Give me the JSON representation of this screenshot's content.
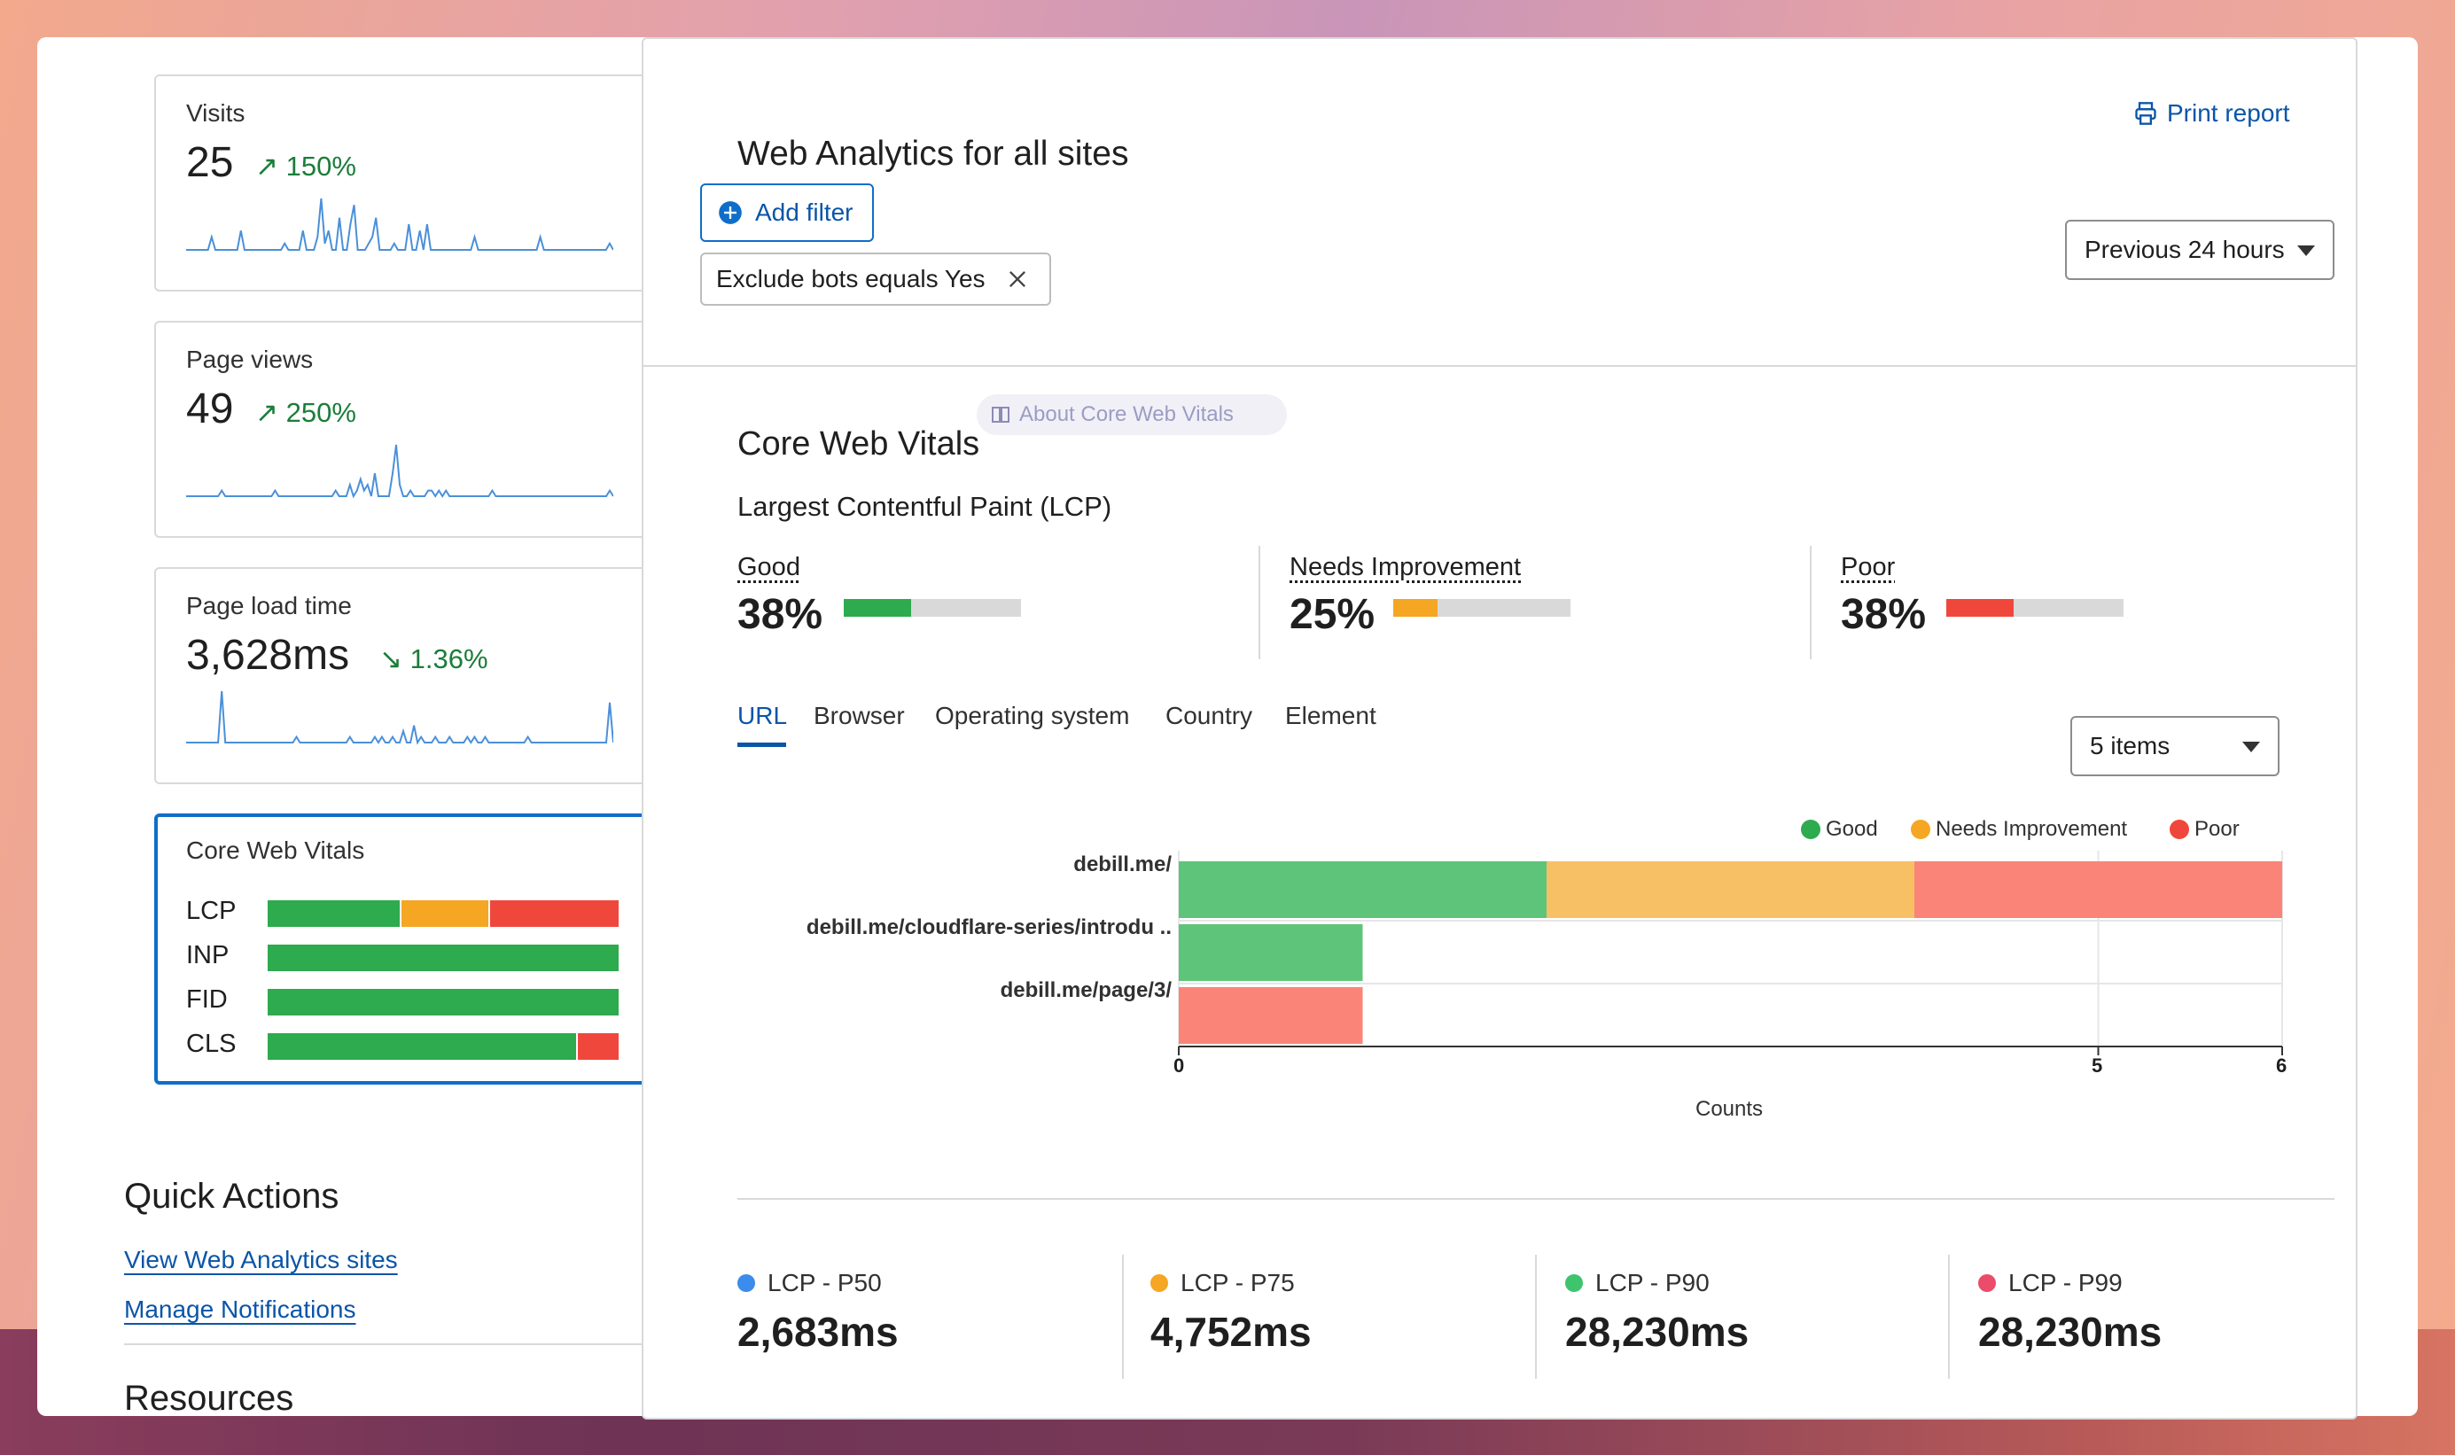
{
  "cards": {
    "visits": {
      "title": "Visits",
      "value": "25",
      "delta": "150%",
      "sparkline": [
        0,
        0,
        0,
        0,
        0,
        0,
        0,
        2,
        0,
        0,
        0,
        0,
        0,
        0,
        0,
        3,
        0,
        0,
        0,
        0,
        0,
        0,
        0,
        0,
        0,
        0,
        0,
        1,
        0,
        0,
        0,
        0,
        3,
        0,
        0,
        0,
        2,
        8,
        1,
        3,
        0,
        0,
        5,
        0,
        0,
        4,
        7,
        0,
        0,
        0,
        1,
        2,
        5,
        0,
        0,
        0,
        0,
        1,
        0,
        0,
        0,
        4,
        0,
        0,
        3,
        0,
        4,
        0,
        0,
        0,
        0,
        0,
        0,
        0,
        0,
        0,
        0,
        0,
        0,
        2,
        0,
        0,
        0,
        0,
        0,
        0,
        0,
        0,
        0,
        0,
        0,
        0,
        0,
        0,
        0,
        0,
        0,
        2,
        0,
        0,
        0,
        0,
        0,
        0,
        0,
        0,
        0,
        0,
        0,
        0,
        0,
        0,
        0,
        0,
        0,
        0,
        1,
        0
      ]
    },
    "pageviews": {
      "title": "Page views",
      "value": "49",
      "delta": "250%",
      "sparkline": [
        0,
        0,
        0,
        0,
        0,
        0,
        0,
        0,
        0,
        0,
        1,
        0,
        0,
        0,
        0,
        0,
        0,
        0,
        0,
        0,
        0,
        0,
        0,
        0,
        0,
        1,
        0,
        0,
        0,
        0,
        0,
        0,
        0,
        0,
        0,
        0,
        0,
        0,
        0,
        0,
        0,
        0,
        1,
        0,
        0,
        0,
        2,
        0,
        1,
        3,
        1,
        2,
        0,
        4,
        0,
        0,
        0,
        0,
        4,
        9,
        2,
        0,
        0,
        1,
        0,
        0,
        0,
        0,
        1,
        1,
        0,
        1,
        0,
        1,
        0,
        0,
        0,
        0,
        0,
        0,
        0,
        0,
        0,
        0,
        0,
        0,
        1,
        0,
        0,
        0,
        0,
        0,
        0,
        0,
        0,
        0,
        0,
        0,
        0,
        0,
        0,
        0,
        0,
        0,
        0,
        0,
        0,
        0,
        0,
        0,
        0,
        0,
        0,
        0,
        0,
        0,
        0,
        0,
        0,
        1,
        0
      ]
    },
    "loadtime": {
      "title": "Page load time",
      "value": "3,628ms",
      "delta": "1.36%",
      "sparkline": [
        0,
        0,
        0,
        0,
        0,
        0,
        0,
        0,
        0,
        0,
        9,
        0,
        0,
        0,
        0,
        0,
        0,
        0,
        0,
        0,
        0,
        0,
        0,
        0,
        0,
        0,
        0,
        0,
        0,
        0,
        0,
        1,
        0,
        0,
        0,
        0,
        0,
        0,
        0,
        0,
        0,
        0,
        0,
        0,
        0,
        0,
        1,
        0,
        0,
        0,
        0,
        0,
        0,
        1,
        0,
        1,
        0,
        0,
        1,
        0,
        0,
        2,
        0,
        0,
        3,
        0,
        1,
        0,
        0,
        0,
        1,
        0,
        0,
        0,
        1,
        0,
        0,
        0,
        0,
        1,
        0,
        1,
        0,
        0,
        1,
        0,
        0,
        0,
        0,
        0,
        0,
        0,
        0,
        0,
        0,
        0,
        1,
        0,
        0,
        0,
        0,
        0,
        0,
        0,
        0,
        0,
        0,
        0,
        0,
        0,
        0,
        0,
        0,
        0,
        0,
        0,
        0,
        0,
        0,
        7,
        0
      ]
    },
    "cwv": {
      "title": "Core Web Vitals",
      "rows": [
        {
          "label": "LCP",
          "good": 0.38,
          "ni": 0.25,
          "poor": 0.37
        },
        {
          "label": "INP",
          "good": 1,
          "ni": 0,
          "poor": 0
        },
        {
          "label": "FID",
          "good": 1,
          "ni": 0,
          "poor": 0
        },
        {
          "label": "CLS",
          "good": 0.88,
          "ni": 0,
          "poor": 0.12
        }
      ]
    }
  },
  "quick_actions": {
    "title": "Quick Actions",
    "links": [
      "View Web Analytics sites",
      "Manage Notifications"
    ]
  },
  "resources": {
    "title": "Resources"
  },
  "main": {
    "title": "Web Analytics for all sites",
    "print_label": "Print report",
    "add_filter_label": "Add filter",
    "filter_chip": "Exclude bots equals Yes",
    "time_range": "Previous 24 hours",
    "cwv_title": "Core Web Vitals",
    "about_label": "About Core Web Vitals",
    "lcp_title": "Largest Contentful Paint (LCP)",
    "metrics": [
      {
        "label": "Good",
        "value": "38%",
        "fraction": 0.38,
        "color": "#2eaa4f"
      },
      {
        "label": "Needs Improvement",
        "value": "25%",
        "fraction": 0.25,
        "color": "#f5a623"
      },
      {
        "label": "Poor",
        "value": "38%",
        "fraction": 0.38,
        "color": "#f0473d"
      }
    ],
    "tabs": [
      "URL",
      "Browser",
      "Operating system",
      "Country",
      "Element"
    ],
    "items_select": "5 items"
  },
  "chart_data": {
    "type": "bar",
    "orientation": "horizontal",
    "stacked": true,
    "categories": [
      "debill.me/",
      "debill.me/cloudflare-series/introdu ..",
      "debill.me/page/3/"
    ],
    "series": [
      {
        "name": "Good",
        "color": "#5ec47a",
        "values": [
          2,
          1,
          0
        ]
      },
      {
        "name": "Needs Improvement",
        "color": "#f8c065",
        "values": [
          2,
          0,
          0
        ]
      },
      {
        "name": "Poor",
        "color": "#fa8478",
        "values": [
          2,
          0,
          1
        ]
      }
    ],
    "legend": [
      {
        "name": "Good",
        "color": "#2eaa4f"
      },
      {
        "name": "Needs Improvement",
        "color": "#f5a623"
      },
      {
        "name": "Poor",
        "color": "#f0473d"
      }
    ],
    "xlabel": "Counts",
    "xticks": [
      0,
      5,
      6
    ],
    "xlim": [
      0,
      6
    ]
  },
  "percentiles": [
    {
      "label": "LCP - P50",
      "value": "2,683ms",
      "color": "#3b8ced"
    },
    {
      "label": "LCP - P75",
      "value": "4,752ms",
      "color": "#f5a623"
    },
    {
      "label": "LCP - P90",
      "value": "28,230ms",
      "color": "#3ec46d"
    },
    {
      "label": "LCP - P99",
      "value": "28,230ms",
      "color": "#ea4c6a"
    }
  ]
}
